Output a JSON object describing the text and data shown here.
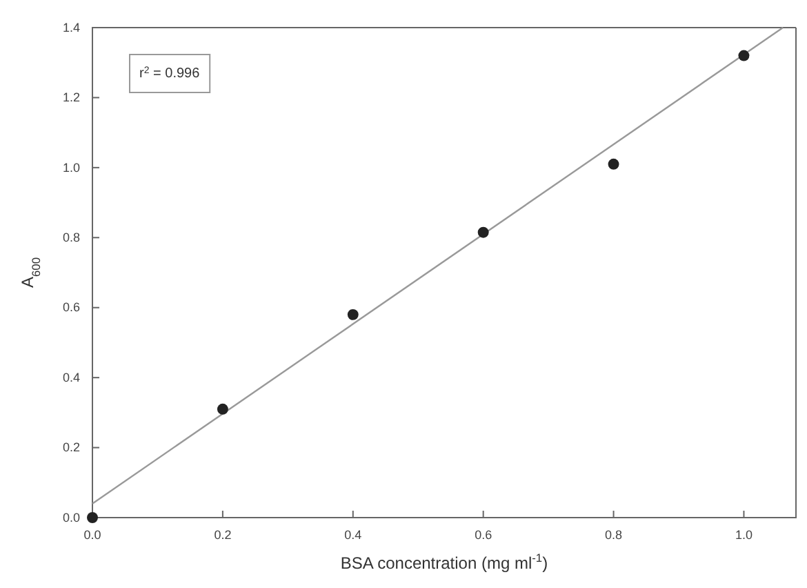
{
  "chart_data": {
    "type": "scatter",
    "xlabel": "BSA concentration (mg ml$^{-1}$)",
    "ylabel": "A$_{600}$",
    "annotations": [
      "r$^{2}$ = 0.996"
    ],
    "series": [
      {
        "color": "#222222",
        "marker": "circle",
        "x": [
          0,
          0.2,
          0.4,
          0.6,
          0.8,
          1.0
        ],
        "values": [
          0,
          0.31,
          0.58,
          0.815,
          1.01,
          1.32
        ]
      },
      {
        "type": "line",
        "color": "#999999",
        "x": [
          0,
          1.06
        ],
        "values": [
          0.04,
          1.4
        ]
      }
    ],
    "xlim": [
      0,
      1.08
    ],
    "ylim": [
      0,
      1.4
    ],
    "xticks": [
      {
        "value": 0,
        "label": "0.0"
      },
      0.2,
      0.4,
      0.6,
      0.8,
      {
        "value": 1,
        "label": "1.0"
      }
    ],
    "yticks": [
      {
        "value": 0,
        "label": "0.0"
      },
      0.2,
      0.4,
      0.6,
      0.8,
      {
        "value": 1,
        "label": "1.0"
      },
      1.2,
      1.4
    ],
    "grid": false,
    "line_style": "solid"
  }
}
